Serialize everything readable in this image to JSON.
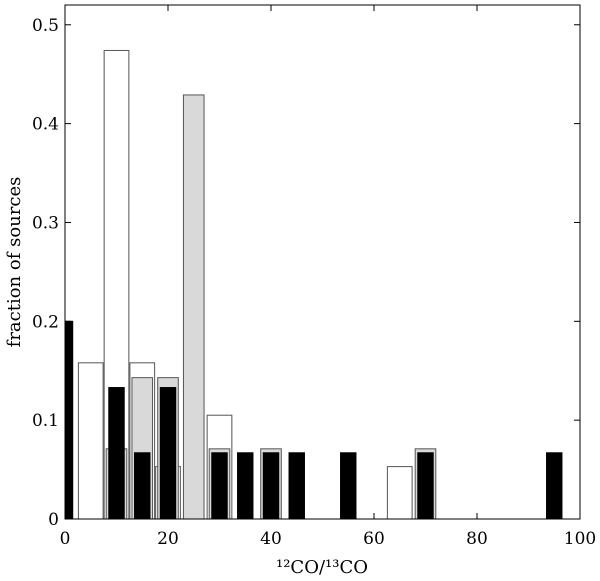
{
  "chart_data": {
    "type": "bar",
    "xlabel": "¹²CO/¹³CO",
    "ylabel": "fraction of sources",
    "xlim": [
      0,
      100
    ],
    "ylim": [
      0,
      0.52
    ],
    "xticks": [
      "0",
      "20",
      "40",
      "60",
      "80",
      "100"
    ],
    "yticks": [
      "0",
      "0.1",
      "0.2",
      "0.3",
      "0.4",
      "0.5"
    ],
    "grid": false,
    "colors": {
      "white": "#ffffff",
      "gray": "#d9d9d9",
      "black": "#000000",
      "edge": "#555555"
    },
    "series": [
      {
        "fill": "white",
        "bars": [
          {
            "x": 5,
            "y": 0.158
          },
          {
            "x": 10,
            "y": 0.474
          },
          {
            "x": 15,
            "y": 0.158
          },
          {
            "x": 20,
            "y": 0.053
          },
          {
            "x": 30,
            "y": 0.105
          },
          {
            "x": 65,
            "y": 0.053
          }
        ]
      },
      {
        "fill": "gray",
        "bars": [
          {
            "x": 10,
            "y": 0.071
          },
          {
            "x": 15,
            "y": 0.143
          },
          {
            "x": 20,
            "y": 0.143
          },
          {
            "x": 25,
            "y": 0.429
          },
          {
            "x": 30,
            "y": 0.071
          },
          {
            "x": 40,
            "y": 0.071
          },
          {
            "x": 70,
            "y": 0.071
          }
        ]
      },
      {
        "fill": "black",
        "bars": [
          {
            "x": 0,
            "y": 0.2
          },
          {
            "x": 10,
            "y": 0.133
          },
          {
            "x": 15,
            "y": 0.067
          },
          {
            "x": 20,
            "y": 0.133
          },
          {
            "x": 30,
            "y": 0.067
          },
          {
            "x": 35,
            "y": 0.067
          },
          {
            "x": 40,
            "y": 0.067
          },
          {
            "x": 45,
            "y": 0.067
          },
          {
            "x": 55,
            "y": 0.067
          },
          {
            "x": 70,
            "y": 0.067
          },
          {
            "x": 95,
            "y": 0.067
          }
        ]
      }
    ]
  }
}
